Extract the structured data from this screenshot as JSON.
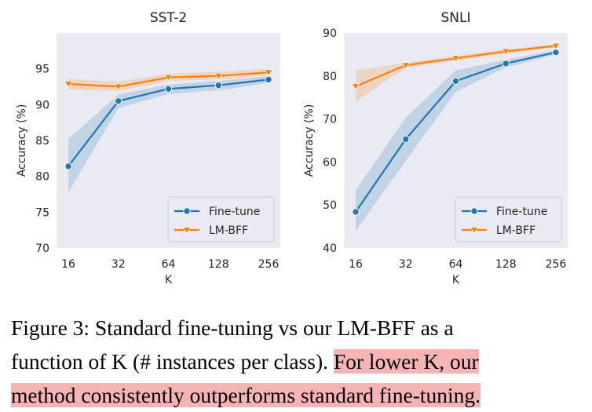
{
  "chart_data": [
    {
      "type": "line",
      "title": "SST-2",
      "xlabel": "K",
      "ylabel": "Accuracy (%)",
      "categories": [
        "16",
        "32",
        "64",
        "128",
        "256"
      ],
      "ylim": [
        70,
        100
      ],
      "yticks": [
        "70",
        "75",
        "80",
        "85",
        "90",
        "95"
      ],
      "grid": false,
      "legend": "lower-right",
      "series": [
        {
          "name": "Fine-tune",
          "color": "#1f77b4",
          "marker": "circle",
          "values": [
            81.4,
            90.5,
            92.2,
            92.7,
            93.5
          ],
          "band_low": [
            77.8,
            89.5,
            91.5,
            92.0,
            93.0
          ],
          "band_high": [
            85.2,
            91.4,
            92.8,
            93.3,
            94.0
          ]
        },
        {
          "name": "LM-BFF",
          "color": "#ff7f0e",
          "marker": "triangle-down",
          "values": [
            92.9,
            92.5,
            93.8,
            94.0,
            94.5
          ],
          "band_low": [
            92.1,
            91.9,
            93.3,
            93.5,
            94.1
          ],
          "band_high": [
            93.6,
            93.2,
            94.3,
            94.6,
            95.0
          ]
        }
      ]
    },
    {
      "type": "line",
      "title": "SNLI",
      "xlabel": "K",
      "ylabel": "Accuracy (%)",
      "categories": [
        "16",
        "32",
        "64",
        "128",
        "256"
      ],
      "ylim": [
        40,
        90
      ],
      "yticks": [
        "40",
        "50",
        "60",
        "70",
        "80",
        "90"
      ],
      "grid": false,
      "legend": "lower-right",
      "series": [
        {
          "name": "Fine-tune",
          "color": "#1f77b4",
          "marker": "circle",
          "values": [
            48.4,
            65.3,
            78.8,
            82.9,
            85.5
          ],
          "band_low": [
            44.0,
            60.3,
            76.3,
            82.0,
            85.0
          ],
          "band_high": [
            53.5,
            70.3,
            81.3,
            83.8,
            86.0
          ]
        },
        {
          "name": "LM-BFF",
          "color": "#ff7f0e",
          "marker": "triangle-down",
          "values": [
            77.6,
            82.5,
            84.1,
            85.7,
            87.0
          ],
          "band_low": [
            74.0,
            81.9,
            83.6,
            85.2,
            86.6
          ],
          "band_high": [
            81.3,
            83.1,
            84.7,
            86.2,
            87.4
          ]
        }
      ]
    }
  ],
  "caption": {
    "line1": "Figure 3: Standard fine-tuning vs our LM-BFF as a",
    "line2_plain": "function of K (# instances per class). ",
    "line2_highlight": "For lower K, our",
    "line3_highlight": "method consistently outperforms standard fine-tuning."
  },
  "colors": {
    "highlight": "#f7b4b4",
    "axes_bg": "#eaeaf2"
  }
}
